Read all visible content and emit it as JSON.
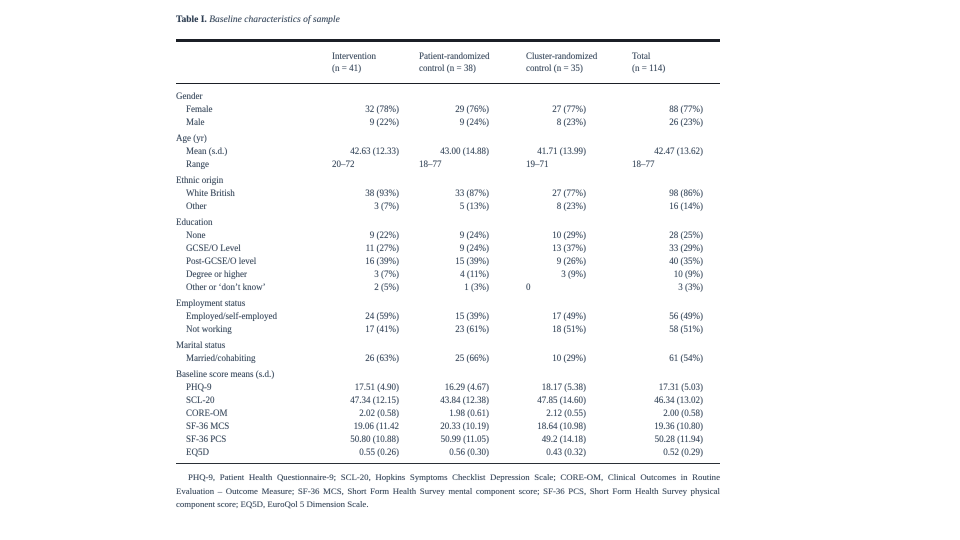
{
  "colors": {
    "ink": "#3d4d60",
    "rule": "#1b1f26"
  },
  "table": {
    "title_prefix": "Table I.",
    "title": "Baseline characteristics of sample",
    "columns": [
      {
        "line1": "Intervention",
        "line2": "(n = 41)"
      },
      {
        "line1": "Patient-randomized",
        "line2": "control (n = 38)"
      },
      {
        "line1": "Cluster-randomized",
        "line2": "control (n = 35)"
      },
      {
        "line1": "Total",
        "line2": "(n = 114)"
      }
    ],
    "sections": [
      {
        "label": "Gender",
        "rows": [
          {
            "label": "Female",
            "values": [
              "32 (78%)",
              "29 (76%)",
              "27 (77%)",
              "88 (77%)"
            ]
          },
          {
            "label": "Male",
            "values": [
              "9 (22%)",
              "9 (24%)",
              "8 (23%)",
              "26 (23%)"
            ]
          }
        ]
      },
      {
        "label": "Age (yr)",
        "rows": [
          {
            "label": "Mean (s.d.)",
            "values": [
              "42.63 (12.33)",
              "43.00 (14.88)",
              "41.71 (13.99)",
              "42.47 (13.62)"
            ]
          },
          {
            "label": "Range",
            "values": [
              "20–72",
              "18–77",
              "19–71",
              "18–77"
            ]
          }
        ]
      },
      {
        "label": "Ethnic origin",
        "rows": [
          {
            "label": "White British",
            "values": [
              "38 (93%)",
              "33 (87%)",
              "27 (77%)",
              "98 (86%)"
            ]
          },
          {
            "label": "Other",
            "values": [
              "3 (7%)",
              "5 (13%)",
              "8 (23%)",
              "16 (14%)"
            ]
          }
        ]
      },
      {
        "label": "Education",
        "rows": [
          {
            "label": "None",
            "values": [
              "9 (22%)",
              "9 (24%)",
              "10 (29%)",
              "28 (25%)"
            ]
          },
          {
            "label": "GCSE/O Level",
            "values": [
              "11 (27%)",
              "9 (24%)",
              "13 (37%)",
              "33 (29%)"
            ]
          },
          {
            "label": "Post-GCSE/O level",
            "values": [
              "16 (39%)",
              "15 (39%)",
              "9 (26%)",
              "40 (35%)"
            ]
          },
          {
            "label": "Degree or higher",
            "values": [
              "3 (7%)",
              "4 (11%)",
              "3 (9%)",
              "10 (9%)"
            ]
          },
          {
            "label": "Other or ‘don’t know’",
            "values": [
              "2 (5%)",
              "1 (3%)",
              "0",
              "3 (3%)"
            ]
          }
        ]
      },
      {
        "label": "Employment status",
        "rows": [
          {
            "label": "Employed/self-employed",
            "values": [
              "24 (59%)",
              "15 (39%)",
              "17 (49%)",
              "56 (49%)"
            ]
          },
          {
            "label": "Not working",
            "values": [
              "17 (41%)",
              "23 (61%)",
              "18 (51%)",
              "58 (51%)"
            ]
          }
        ]
      },
      {
        "label": "Marital status",
        "rows": [
          {
            "label": "Married/cohabiting",
            "values": [
              "26 (63%)",
              "25 (66%)",
              "10 (29%)",
              "61 (54%)"
            ]
          }
        ]
      },
      {
        "label": "Baseline score means (s.d.)",
        "rows": [
          {
            "label": "PHQ-9",
            "values": [
              "17.51 (4.90)",
              "16.29 (4.67)",
              "18.17 (5.38)",
              "17.31 (5.03)"
            ]
          },
          {
            "label": "SCL-20",
            "values": [
              "47.34 (12.15)",
              "43.84 (12.38)",
              "47.85 (14.60)",
              "46.34 (13.02)"
            ]
          },
          {
            "label": "CORE-OM",
            "values": [
              "2.02 (0.58)",
              "1.98 (0.61)",
              "2.12 (0.55)",
              "2.00 (0.58)"
            ]
          },
          {
            "label": "SF-36 MCS",
            "values": [
              "19.06 (11.42",
              "20.33 (10.19)",
              "18.64 (10.98)",
              "19.36 (10.80)"
            ]
          },
          {
            "label": "SF-36 PCS",
            "values": [
              "50.80 (10.88)",
              "50.99 (11.05)",
              "49.2 (14.18)",
              "50.28 (11.94)"
            ]
          },
          {
            "label": "EQ5D",
            "values": [
              "0.55 (0.26)",
              "0.56 (0.30)",
              "0.43 (0.32)",
              "0.52 (0.29)"
            ]
          }
        ]
      }
    ],
    "footnote": "PHQ-9, Patient Health Questionnaire-9; SCL-20, Hopkins Symptoms Checklist Depression Scale; CORE-OM, Clinical Outcomes in Routine Evaluation – Outcome Measure; SF-36 MCS, Short Form Health Survey mental component score; SF-36 PCS, Short Form Health Survey physical component score; EQ5D, EuroQol 5 Dimension Scale."
  }
}
